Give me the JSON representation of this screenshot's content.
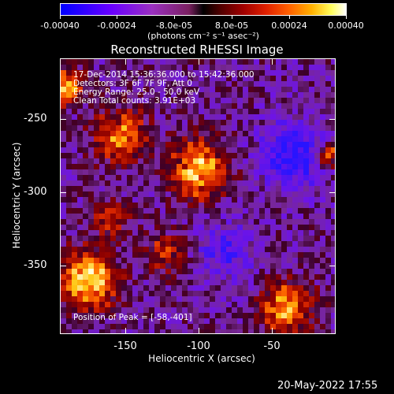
{
  "colorbar": {
    "tick_labels": [
      "-0.00040",
      "-0.00024",
      "-8.0e-05",
      "8.0e-05",
      "0.00024",
      "0.00040"
    ],
    "units_label": "(photons cm⁻² s⁻¹ asec⁻²)"
  },
  "plot": {
    "title": "Reconstructed RHESSI Image",
    "info_lines": [
      "17-Dec-2014 15:36:36.000 to 15:42:36.000",
      "Detectors: 3F 6F 7F 9F, Att 0",
      "Energy Range: 25.0 - 50.0 keV",
      "Clean     Total counts: 3.91E+03"
    ],
    "peak_text": "Position of Peak = [-58,-401]",
    "x_label": "Heliocentric X (arcsec)",
    "y_label": "Heliocentric Y (arcsec)",
    "x_ticks": [
      "-150",
      "-100",
      "-50"
    ],
    "y_ticks": [
      "-250",
      "-300",
      "-350"
    ]
  },
  "footer": {
    "timestamp": "20-May-2022 17:55"
  }
}
